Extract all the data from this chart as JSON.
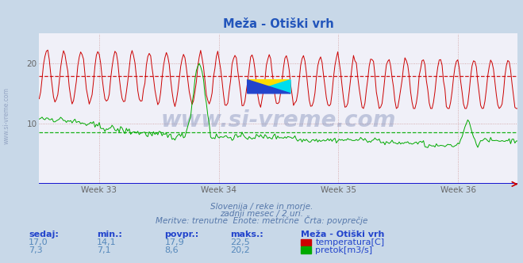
{
  "title": "Meža - Otiški vrh",
  "subtitle_lines": [
    "Slovenija / reke in morje.",
    "zadnji mesec / 2 uri.",
    "Meritve: trenutne  Enote: metrične  Črta: povprečje"
  ],
  "x_tick_labels": [
    "Week 33",
    "Week 34",
    "Week 35",
    "Week 36"
  ],
  "x_tick_positions": [
    0.125,
    0.375,
    0.625,
    0.875
  ],
  "y_ticks": [
    10,
    20
  ],
  "ylim": [
    0,
    25
  ],
  "xlim": [
    0,
    1
  ],
  "bg_color": "#c8d8e8",
  "plot_bg_color": "#f0f0f8",
  "grid_color": "#d0c8d8",
  "temp_color": "#cc0000",
  "flow_color": "#00aa00",
  "avg_temp": 17.9,
  "avg_flow": 8.6,
  "table_headers": [
    "sedaj:",
    "min.:",
    "povpr.:",
    "maks.:"
  ],
  "table_col1": [
    "17,0",
    "7,3"
  ],
  "table_col2": [
    "14,1",
    "7,1"
  ],
  "table_col3": [
    "17,9",
    "8,6"
  ],
  "table_col4": [
    "22,5",
    "20,2"
  ],
  "legend_title": "Meža - Otiški vrh",
  "legend_items": [
    "temperatura[C]",
    "pretok[m3/s]"
  ],
  "watermark": "www.si-vreme.com",
  "title_color": "#2255bb",
  "text_color": "#5577aa",
  "table_label_color": "#2244cc",
  "table_value_color": "#5588bb"
}
